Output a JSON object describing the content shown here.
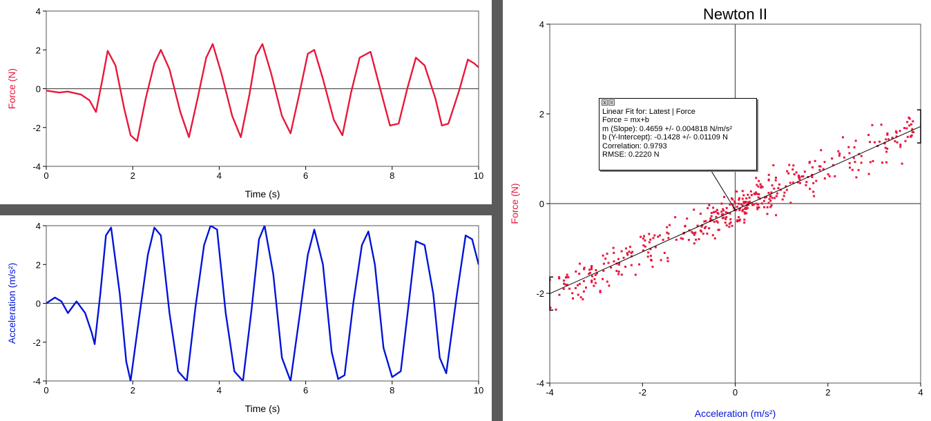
{
  "colors": {
    "force": "#e8173c",
    "acceleration": "#0014d8",
    "axis": "#505050",
    "grid": "#c8c8c8",
    "divider": "#5a5a5a",
    "fit_line": "#000000"
  },
  "fit_box": {
    "close_icon": "x",
    "menu_icon": "=",
    "lines": [
      "Linear Fit for: Latest | Force",
      "Force = mx+b",
      "m (Slope): 0.4659 +/- 0.004818 N/m/s²",
      "b (Y-Intercept): -0.1428 +/- 0.01109 N",
      "Correlation: 0.9793",
      "RMSE: 0.2220 N"
    ]
  },
  "chart_data": [
    {
      "id": "force-time",
      "type": "line",
      "title": "",
      "xlabel": "Time (s)",
      "ylabel": "Force (N)",
      "xlim": [
        0,
        10
      ],
      "ylim": [
        -4,
        4
      ],
      "xticks": [
        0,
        2,
        4,
        6,
        8,
        10
      ],
      "yticks": [
        -4,
        -2,
        0,
        2,
        4
      ],
      "grid": false,
      "series": [
        {
          "color": "#e8173c",
          "x": [
            0,
            0.3,
            0.5,
            0.8,
            1.0,
            1.15,
            1.3,
            1.42,
            1.6,
            1.8,
            1.95,
            2.1,
            2.3,
            2.5,
            2.65,
            2.85,
            3.1,
            3.3,
            3.5,
            3.7,
            3.85,
            4.05,
            4.3,
            4.5,
            4.7,
            4.85,
            5.0,
            5.2,
            5.45,
            5.65,
            5.85,
            6.05,
            6.2,
            6.4,
            6.65,
            6.85,
            7.05,
            7.25,
            7.5,
            7.7,
            7.95,
            8.15,
            8.35,
            8.55,
            8.75,
            9.0,
            9.15,
            9.3,
            9.55,
            9.75,
            9.9,
            10.0
          ],
          "y": [
            -0.1,
            -0.2,
            -0.15,
            -0.3,
            -0.6,
            -1.2,
            0.5,
            1.95,
            1.2,
            -1.0,
            -2.4,
            -2.7,
            -0.5,
            1.3,
            2.0,
            1.0,
            -1.2,
            -2.5,
            -0.5,
            1.6,
            2.3,
            0.8,
            -1.4,
            -2.5,
            -0.3,
            1.7,
            2.3,
            0.8,
            -1.4,
            -2.3,
            -0.3,
            1.8,
            2.0,
            0.5,
            -1.6,
            -2.4,
            -0.2,
            1.6,
            1.9,
            0.2,
            -1.9,
            -1.8,
            0.0,
            1.6,
            1.2,
            -0.5,
            -1.9,
            -1.8,
            -0.1,
            1.5,
            1.3,
            1.1
          ]
        }
      ]
    },
    {
      "id": "acceleration-time",
      "type": "line",
      "title": "",
      "xlabel": "Time (s)",
      "ylabel": "Acceleration (m/s²)",
      "xlim": [
        0,
        10
      ],
      "ylim": [
        -4,
        4
      ],
      "xticks": [
        0,
        2,
        4,
        6,
        8,
        10
      ],
      "yticks": [
        -4,
        -2,
        0,
        2,
        4
      ],
      "grid": false,
      "series": [
        {
          "color": "#0014d8",
          "x": [
            0,
            0.2,
            0.35,
            0.5,
            0.7,
            0.9,
            1.05,
            1.12,
            1.25,
            1.38,
            1.5,
            1.7,
            1.85,
            1.95,
            2.15,
            2.35,
            2.5,
            2.65,
            2.85,
            3.05,
            3.25,
            3.45,
            3.65,
            3.8,
            3.95,
            4.15,
            4.35,
            4.55,
            4.75,
            4.92,
            5.05,
            5.25,
            5.45,
            5.65,
            5.85,
            6.05,
            6.2,
            6.4,
            6.6,
            6.75,
            6.9,
            7.1,
            7.3,
            7.45,
            7.6,
            7.8,
            8.0,
            8.2,
            8.4,
            8.55,
            8.75,
            8.95,
            9.1,
            9.25,
            9.5,
            9.7,
            9.85,
            10.0
          ],
          "y": [
            0.0,
            0.3,
            0.1,
            -0.5,
            0.1,
            -0.5,
            -1.5,
            -2.1,
            0.5,
            3.5,
            3.9,
            0.5,
            -3.0,
            -4.0,
            -0.7,
            2.5,
            3.9,
            3.5,
            -0.5,
            -3.5,
            -4.0,
            -0.2,
            3.0,
            4.0,
            3.8,
            -0.5,
            -3.5,
            -4.0,
            -0.3,
            3.3,
            4.0,
            1.5,
            -2.8,
            -4.0,
            -0.8,
            2.5,
            3.8,
            2.0,
            -2.5,
            -3.9,
            -3.7,
            0.0,
            3.0,
            3.7,
            2.0,
            -2.3,
            -3.8,
            -3.5,
            0.3,
            3.2,
            3.0,
            0.5,
            -2.8,
            -3.6,
            0.5,
            3.5,
            3.3,
            2.0
          ]
        }
      ]
    },
    {
      "id": "newton-ii",
      "type": "scatter",
      "title": "Newton II",
      "xlabel": "Acceleration (m/s²)",
      "ylabel": "Force (N)",
      "xlim": [
        -4,
        4
      ],
      "ylim": [
        -4,
        4
      ],
      "xticks": [
        -4,
        -2,
        0,
        2,
        4
      ],
      "yticks": [
        -4,
        -2,
        0,
        2,
        4
      ],
      "grid": false,
      "scatter": {
        "color": "#e8173c",
        "count": 420,
        "slope": 0.4659,
        "intercept": -0.1428,
        "rmse": 0.222,
        "x_range": [
          -4,
          4
        ]
      },
      "fit": {
        "type": "linear",
        "slope": 0.4659,
        "intercept": -0.1428,
        "x_range": [
          -4,
          4
        ],
        "color": "#000000"
      },
      "annotation_anchor": [
        0.0,
        -0.14
      ]
    }
  ]
}
